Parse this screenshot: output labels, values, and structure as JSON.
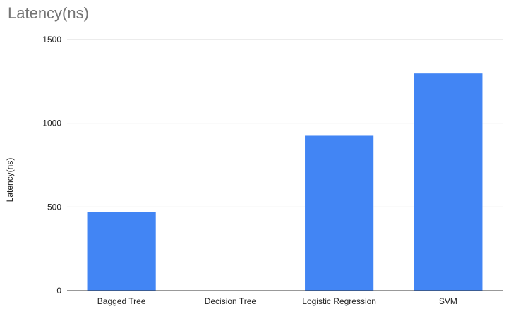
{
  "chart_data": {
    "type": "bar",
    "title": "Latency(ns)",
    "xlabel": "",
    "ylabel": "Latency(ns)",
    "categories": [
      "Bagged Tree",
      "Decision Tree",
      "Logistic Regression",
      "SVM"
    ],
    "values": [
      470,
      0,
      925,
      1297
    ],
    "ylim": [
      0,
      1500
    ],
    "yticks": [
      "0",
      "500",
      "1000",
      "1500"
    ],
    "ytick_values": [
      0,
      500,
      1000,
      1500
    ],
    "grid": true,
    "legend": "none",
    "colors": {
      "bar": "#4285f4",
      "grid": "#d9d9d9",
      "axis": "#333333"
    }
  }
}
